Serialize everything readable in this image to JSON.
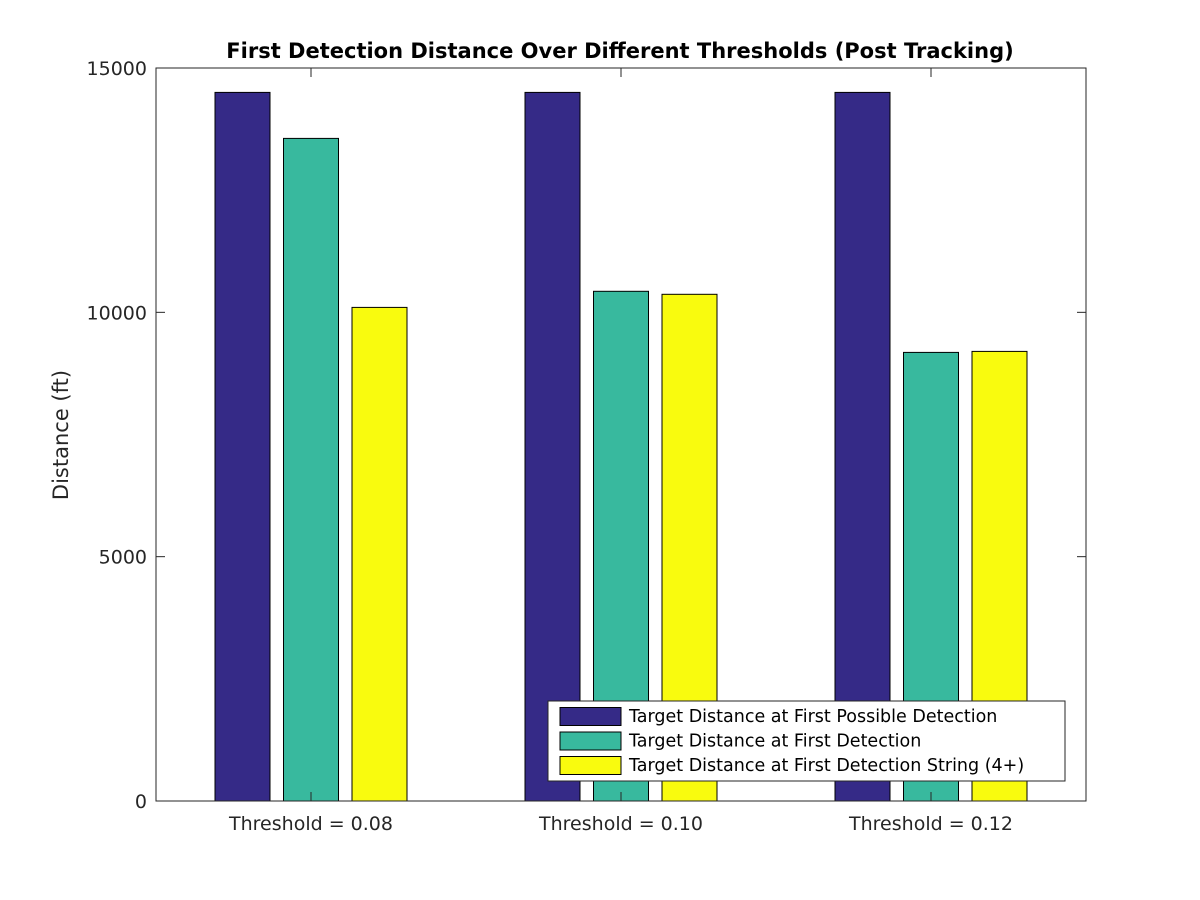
{
  "chart_data": {
    "type": "bar",
    "title": "First Detection Distance Over Different Thresholds (Post Tracking)",
    "xlabel": "",
    "ylabel": "Distance (ft)",
    "ylim": [
      0,
      15000
    ],
    "yticks": [
      0,
      5000,
      10000,
      15000
    ],
    "categories": [
      "Threshold = 0.08",
      "Threshold = 0.10",
      "Threshold = 0.12"
    ],
    "series": [
      {
        "name": "Target Distance at First Possible Detection",
        "color": "#352a87",
        "values": [
          14500,
          14500,
          14500
        ]
      },
      {
        "name": "Target Distance at First Detection",
        "color": "#38b99e",
        "values": [
          13560,
          10430,
          9180
        ]
      },
      {
        "name": "Target Distance at First Detection String (4+)",
        "color": "#f9fb0e",
        "values": [
          10100,
          10370,
          9200
        ]
      }
    ],
    "grid": false,
    "legend_position": "bottom-right"
  }
}
